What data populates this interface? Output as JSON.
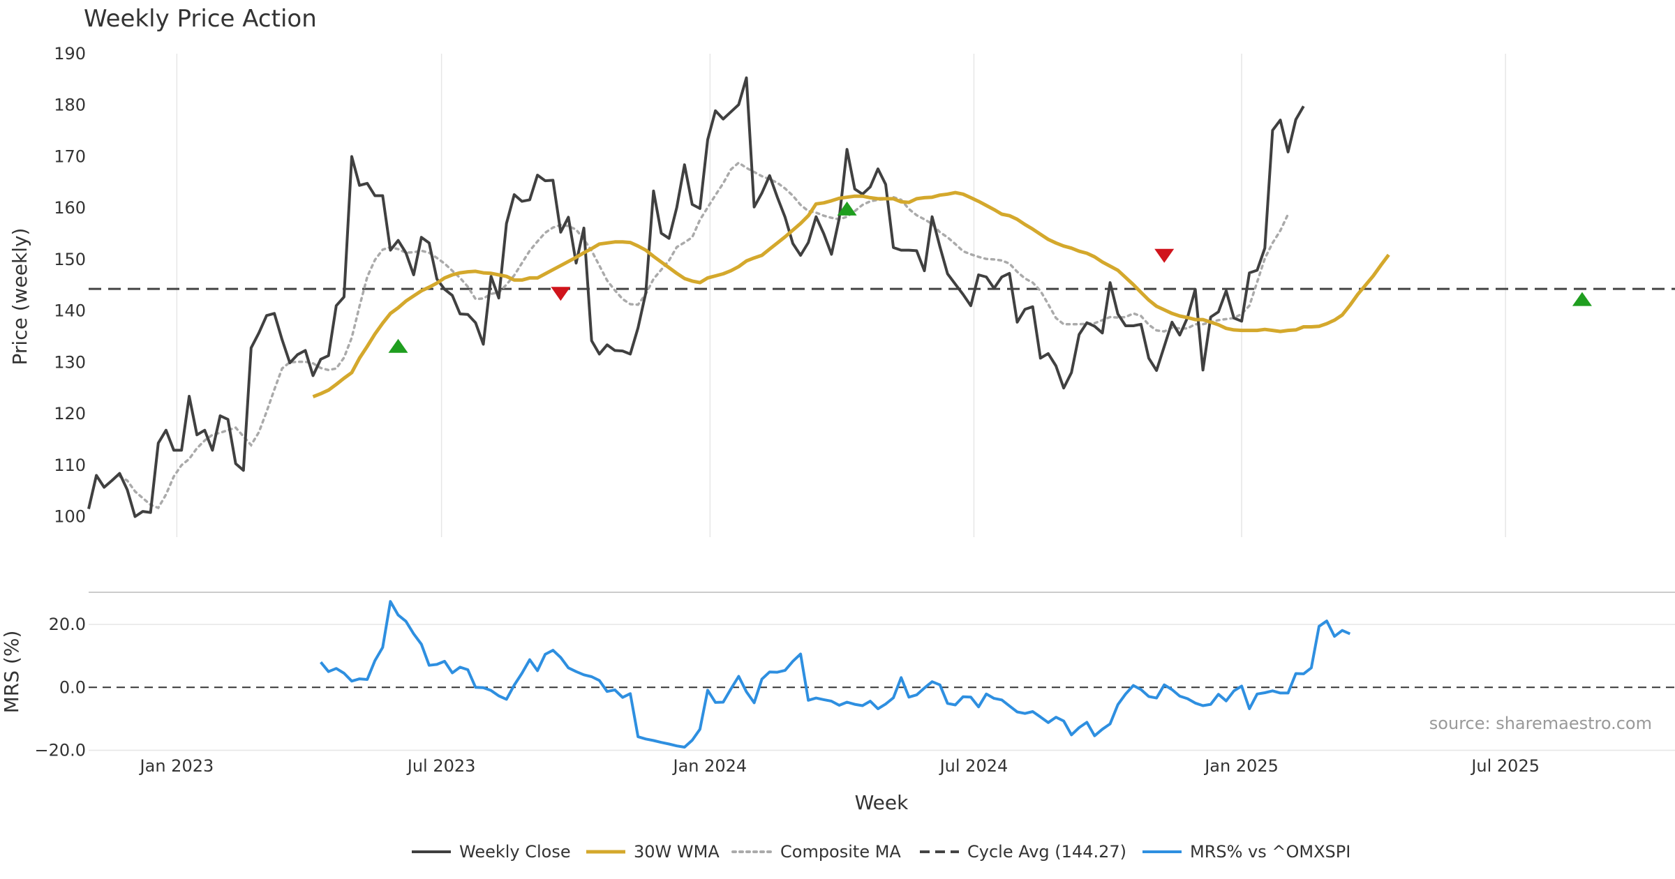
{
  "chart_data": {
    "type": "line",
    "title": "Weekly Price Action",
    "xlabel": "Week",
    "colors": {
      "close": "#404040",
      "wma": "#D4A82C",
      "composite": "#AAAAAA",
      "cycle": "#444444",
      "mrs": "#2E8FE0",
      "up_marker": "#1F9E1F",
      "down_marker": "#D0141C",
      "grid": "#E6E6E6",
      "separator": "#BBBBBB"
    },
    "price_panel": {
      "ylabel": "Price (weekly)",
      "ylim": [
        96,
        190
      ],
      "yticks": [
        100,
        110,
        120,
        130,
        140,
        150,
        160,
        170,
        180,
        190
      ],
      "ytick_labels": [
        "100",
        "110",
        "120",
        "130",
        "140",
        "150",
        "160",
        "170",
        "180",
        "190"
      ]
    },
    "mrs_panel": {
      "ylabel": "MRS (%)",
      "ylim": [
        -21,
        30
      ],
      "yticks": [
        20,
        0,
        -20
      ],
      "ytick_labels": [
        "20.0",
        "0.0",
        "−20.0"
      ],
      "zero_line": 0
    },
    "x_axis": {
      "range_weeks": [
        0,
        205
      ],
      "tick_weeks": [
        11.4,
        45.6,
        80.3,
        114.4,
        149.0,
        183.1
      ],
      "tick_labels": [
        "Jan 2023",
        "Jul 2023",
        "Jan 2024",
        "Jul 2024",
        "Jan 2025",
        "Jul 2025"
      ]
    },
    "series": [
      {
        "name": "Weekly Close",
        "key": "close",
        "start_week": 0,
        "values": [
          101.5,
          108,
          105.7,
          107,
          108.4,
          105.2,
          100,
          101,
          100.8,
          114.3,
          116.8,
          112.9,
          112.9,
          123.4,
          115.9,
          116.8,
          112.9,
          119.6,
          118.9,
          110.3,
          109,
          132.8,
          135.7,
          139.1,
          139.5,
          134.4,
          129.9,
          131.5,
          132.3,
          127.4,
          130.6,
          131.3,
          141,
          142.7,
          170,
          164.4,
          164.8,
          162.4,
          162.4,
          151.8,
          153.7,
          151.3,
          147,
          154.3,
          153.2,
          146.2,
          144.2,
          143,
          139.4,
          139.3,
          137.7,
          133.5,
          146.7,
          142.5,
          157,
          162.6,
          161.3,
          161.6,
          166.4,
          165.3,
          165.4,
          155.3,
          158.2,
          149.3,
          156.1,
          134.2,
          131.6,
          133.4,
          132.3,
          132.2,
          131.6,
          136.7,
          143.5,
          163.3,
          155.1,
          154.1,
          160.1,
          168.4,
          160.7,
          159.9,
          173.3,
          178.9,
          177.3,
          178.7,
          180.1,
          185.3,
          160.2,
          162.9,
          166.3,
          162.1,
          158.2,
          153.1,
          150.8,
          153.3,
          158.3,
          155,
          151,
          158,
          171.4,
          163.7,
          162.7,
          164.1,
          167.6,
          164.6,
          152.3,
          151.8,
          151.8,
          151.7,
          147.8,
          158.3,
          152.5,
          147.2,
          145.2,
          143.2,
          141,
          147,
          146.6,
          144.4,
          146.6,
          147.3,
          137.8,
          140.3,
          140.8,
          130.8,
          131.7,
          129.3,
          125,
          128,
          135.4,
          137.7,
          137,
          135.7,
          145.5,
          139.4,
          137.1,
          137.1,
          137.4,
          130.8,
          128.4,
          133.1,
          137.8,
          135.3,
          138.7,
          144.2,
          128.5,
          138.8,
          139.8,
          143.9,
          138.6,
          138,
          147.4,
          147.9,
          152.2,
          175.1,
          177.1,
          170.9,
          177.2,
          179.8
        ]
      },
      {
        "name": "30W WMA",
        "key": "wma",
        "start_week": 29,
        "values": [
          123.3,
          123.9,
          124.6,
          125.7,
          126.9,
          128,
          130.8,
          133.1,
          135.5,
          137.6,
          139.5,
          140.6,
          141.9,
          142.9,
          143.9,
          144.6,
          145.4,
          146.4,
          147,
          147.4,
          147.6,
          147.7,
          147.4,
          147.3,
          147,
          146.7,
          146,
          146,
          146.4,
          146.4,
          147.2,
          148,
          148.8,
          149.6,
          150.4,
          151.3,
          152.1,
          153,
          153.2,
          153.4,
          153.4,
          153.3,
          152.6,
          151.8,
          150.6,
          149.5,
          148.4,
          147.3,
          146.3,
          145.8,
          145.5,
          146.4,
          146.8,
          147.2,
          147.8,
          148.6,
          149.7,
          150.3,
          150.8,
          152,
          153.2,
          154.4,
          155.7,
          157,
          158.5,
          160.8,
          161,
          161.4,
          161.9,
          162.1,
          162.3,
          162.3,
          162,
          161.8,
          161.8,
          161.8,
          161.2,
          161.1,
          161.8,
          162,
          162.1,
          162.5,
          162.7,
          163,
          162.7,
          162,
          161.3,
          160.5,
          159.7,
          158.8,
          158.5,
          157.8,
          156.8,
          155.9,
          154.9,
          153.9,
          153.2,
          152.6,
          152.2,
          151.6,
          151.2,
          150.5,
          149.5,
          148.7,
          147.9,
          146.5,
          145.1,
          143.6,
          142.1,
          140.9,
          140.2,
          139.5,
          139,
          138.7,
          138.3,
          138.3,
          137.8,
          137.3,
          136.6,
          136.3,
          136.2,
          136.2,
          136.2,
          136.4,
          136.2,
          136,
          136.2,
          136.3,
          136.9,
          136.9,
          137,
          137.5,
          138.2,
          139.2,
          141.1,
          143.2,
          145,
          146.8,
          148.9,
          150.9
        ]
      },
      {
        "name": "Composite MA",
        "key": "composite",
        "start_week": 4,
        "values": [
          107.8,
          107,
          104.9,
          103.6,
          102.3,
          101.7,
          104.3,
          107.8,
          110,
          111.2,
          113.3,
          114.8,
          115.9,
          116.3,
          116.8,
          117.3,
          115.6,
          113.9,
          116.4,
          120.4,
          124.7,
          128.8,
          130,
          130.1,
          130.1,
          129.8,
          128.9,
          128.5,
          128.8,
          130.9,
          134.8,
          140.9,
          146.6,
          149.9,
          151.9,
          152.4,
          152,
          151.3,
          151.4,
          151.7,
          151.3,
          150.3,
          149.2,
          147.8,
          146.4,
          144.7,
          142.3,
          142.4,
          143.3,
          143.6,
          145.1,
          146.9,
          149.3,
          151.7,
          153.5,
          155.2,
          156.2,
          156.7,
          156.5,
          155.8,
          153.9,
          151.7,
          148.8,
          145.9,
          144,
          142.3,
          141.3,
          141.2,
          143.3,
          146.2,
          148,
          149.8,
          152.4,
          153.3,
          154.3,
          157.7,
          160.1,
          162.5,
          164.8,
          167.5,
          168.8,
          167.8,
          167,
          166.2,
          165.6,
          164.9,
          163.8,
          162.4,
          160.6,
          159.4,
          159.1,
          158.5,
          158.1,
          157.8,
          158.3,
          159.4,
          160.6,
          161.3,
          161.6,
          161.7,
          162.1,
          161.6,
          159.8,
          158.6,
          157.8,
          156.9,
          155.3,
          154.3,
          153,
          151.6,
          151,
          150.5,
          150.1,
          150,
          149.8,
          149.2,
          147.6,
          146.3,
          145.5,
          143.9,
          141.3,
          138.6,
          137.4,
          137.4,
          137.4,
          137.5,
          137.6,
          138.2,
          138.8,
          138.7,
          138.8,
          139.5,
          139,
          137.3,
          136.2,
          136,
          136.7,
          136.6,
          136.6,
          137.4,
          137.4,
          137.8,
          138.2,
          138.4,
          138.6,
          139.4,
          141,
          145.6,
          150.2,
          153.2,
          155.6,
          158.8
        ]
      },
      {
        "name": "Cycle Avg (144.27)",
        "key": "cycle",
        "value": 144.27
      },
      {
        "name": "MRS% vs ^OMXSPI",
        "key": "mrs",
        "panel": "mrs",
        "start_week": 30,
        "values": [
          8,
          5,
          6,
          4.5,
          2,
          2.7,
          2.5,
          8.5,
          12.7,
          27.3,
          23,
          21,
          17,
          13.7,
          7,
          7.3,
          8.3,
          4.6,
          6.4,
          5.6,
          0,
          -0.1,
          -1,
          -2.7,
          -3.8,
          0.7,
          4.5,
          8.8,
          5.3,
          10.5,
          11.8,
          9.5,
          6.2,
          5,
          4,
          3.4,
          2.2,
          -1.3,
          -0.8,
          -3.2,
          -2,
          -15.7,
          -16.4,
          -16.9,
          -17.5,
          -18,
          -18.6,
          -19,
          -16.8,
          -13.3,
          -0.9,
          -4.8,
          -4.7,
          -0.5,
          3.5,
          -1.4,
          -4.9,
          2.6,
          4.9,
          4.8,
          5.4,
          8.3,
          10.6,
          -4.1,
          -3.4,
          -3.9,
          -4.4,
          -5.7,
          -4.7,
          -5.4,
          -5.8,
          -4.4,
          -6.8,
          -5.3,
          -3.3,
          3.1,
          -3.1,
          -2.4,
          -0.2,
          1.8,
          0.8,
          -5.1,
          -5.6,
          -3,
          -3.1,
          -6.2,
          -2.1,
          -3.5,
          -4,
          -5.9,
          -7.8,
          -8.3,
          -7.7,
          -9.4,
          -11.2,
          -9.5,
          -10.7,
          -15.1,
          -12.8,
          -11.1,
          -15.4,
          -13.3,
          -11.6,
          -5.5,
          -2.1,
          0.6,
          -0.7,
          -2.9,
          -3.4,
          0.8,
          -0.7,
          -2.8,
          -3.6,
          -5,
          -5.8,
          -5.4,
          -2.2,
          -4.3,
          -1.1,
          0.4,
          -6.8,
          -2.1,
          -1.7,
          -1.1,
          -1.8,
          -1.8,
          4.4,
          4.3,
          6.2,
          19.4,
          21.1,
          16.2,
          18.1,
          17
        ]
      }
    ],
    "signals": [
      {
        "direction": "up",
        "week": 40,
        "price": 133.2
      },
      {
        "direction": "down",
        "week": 61,
        "price": 143.3
      },
      {
        "direction": "up",
        "week": 98,
        "price": 159.9
      },
      {
        "direction": "down",
        "week": 139,
        "price": 150.7
      },
      {
        "direction": "up",
        "week": 193,
        "price": 142.3
      }
    ],
    "legend": [
      {
        "key": "close",
        "label": "Weekly Close",
        "style": "solid"
      },
      {
        "key": "wma",
        "label": "30W WMA",
        "style": "solid"
      },
      {
        "key": "composite",
        "label": "Composite MA",
        "style": "dotted"
      },
      {
        "key": "cycle",
        "label": "Cycle Avg (144.27)",
        "style": "dashed"
      },
      {
        "key": "mrs",
        "label": "MRS% vs ^OMXSPI",
        "style": "solid"
      }
    ],
    "legend_position": "bottom-center",
    "source": "source: sharemaestro.com"
  }
}
